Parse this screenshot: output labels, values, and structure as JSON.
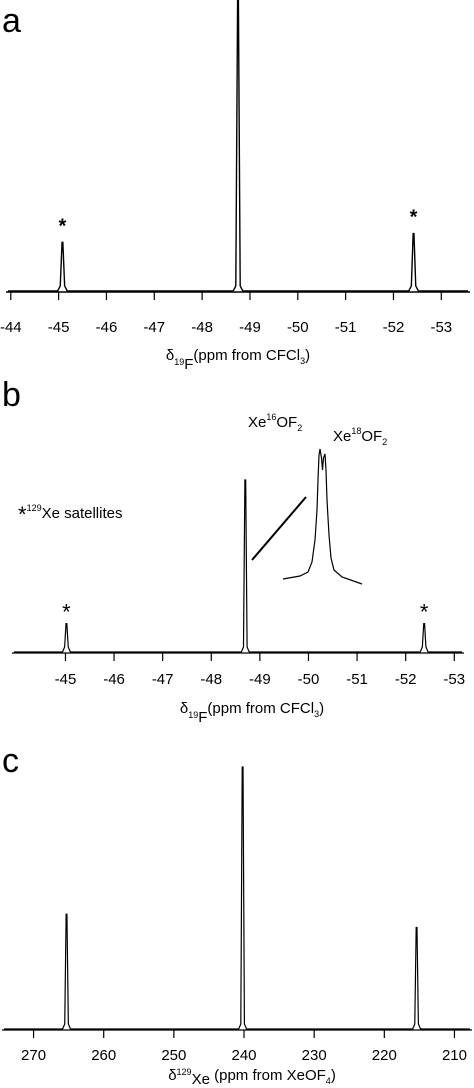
{
  "chart_data": [
    {
      "panel": "a",
      "type": "line",
      "x_ticks": [
        -44,
        -45,
        -46,
        -47,
        -48,
        -49,
        -50,
        -51,
        -52,
        -53
      ],
      "x_tick_labels": [
        "-44",
        "-45",
        "-46",
        "-47",
        "-48",
        "-49",
        "-50",
        "-51",
        "-52",
        "-53"
      ],
      "xlim": [
        -43.9,
        -53.6
      ],
      "xlabel": {
        "delta": "δ",
        "sub": "19",
        "nucleus": "F",
        "rest": "(ppm from CFCl",
        "rest_sub": "3",
        "close": ")"
      },
      "peaks": [
        {
          "x": -45.08,
          "height": 0.17,
          "marker": "*"
        },
        {
          "x": -48.75,
          "height": 1.05,
          "marker": ""
        },
        {
          "x": -52.42,
          "height": 0.2,
          "marker": "*"
        }
      ]
    },
    {
      "panel": "b",
      "type": "line",
      "x_ticks": [
        -45,
        -46,
        -47,
        -48,
        -49,
        -50,
        -51,
        -52,
        -53
      ],
      "x_tick_labels": [
        "-45",
        "-46",
        "-47",
        "-48",
        "-49",
        "-50",
        "-51",
        "-52",
        "-53"
      ],
      "xlim": [
        -43.9,
        -53.2
      ],
      "xlabel": {
        "delta": "δ",
        "sub": "19",
        "nucleus": "F",
        "rest": "(ppm from CFCl",
        "rest_sub": "3",
        "close": ")"
      },
      "peaks": [
        {
          "x": -45.02,
          "height": 0.17,
          "marker": "*"
        },
        {
          "x": -48.7,
          "height": 1.0,
          "marker": ""
        },
        {
          "x": -52.38,
          "height": 0.17,
          "marker": "*"
        }
      ],
      "legend": {
        "star": "*",
        "sup": "129",
        "text": "Xe satellites"
      },
      "inset_labels": [
        {
          "pre": "Xe",
          "sup": "16",
          "mid": "OF",
          "sub": "2"
        },
        {
          "pre": "Xe",
          "sup": "18",
          "mid": "OF",
          "sub": "2"
        }
      ]
    },
    {
      "panel": "c",
      "type": "line",
      "x_ticks": [
        270,
        260,
        250,
        240,
        230,
        220,
        210
      ],
      "x_tick_labels": [
        "270",
        "260",
        "250",
        "240",
        "230",
        "220",
        "210"
      ],
      "xlim": [
        274.5,
        207.5
      ],
      "xlabel": {
        "delta": "δ",
        "sub": "129",
        "nucleus": "Xe",
        "rest": " (ppm from XeOF",
        "rest_sub": "4",
        "close": ")"
      },
      "peaks": [
        {
          "x": 265.3,
          "height": 0.44,
          "marker": ""
        },
        {
          "x": 240.2,
          "height": 1.0,
          "marker": ""
        },
        {
          "x": 215.4,
          "height": 0.39,
          "marker": ""
        }
      ]
    }
  ],
  "panels": {
    "a": "a",
    "b": "b",
    "c": "c"
  }
}
